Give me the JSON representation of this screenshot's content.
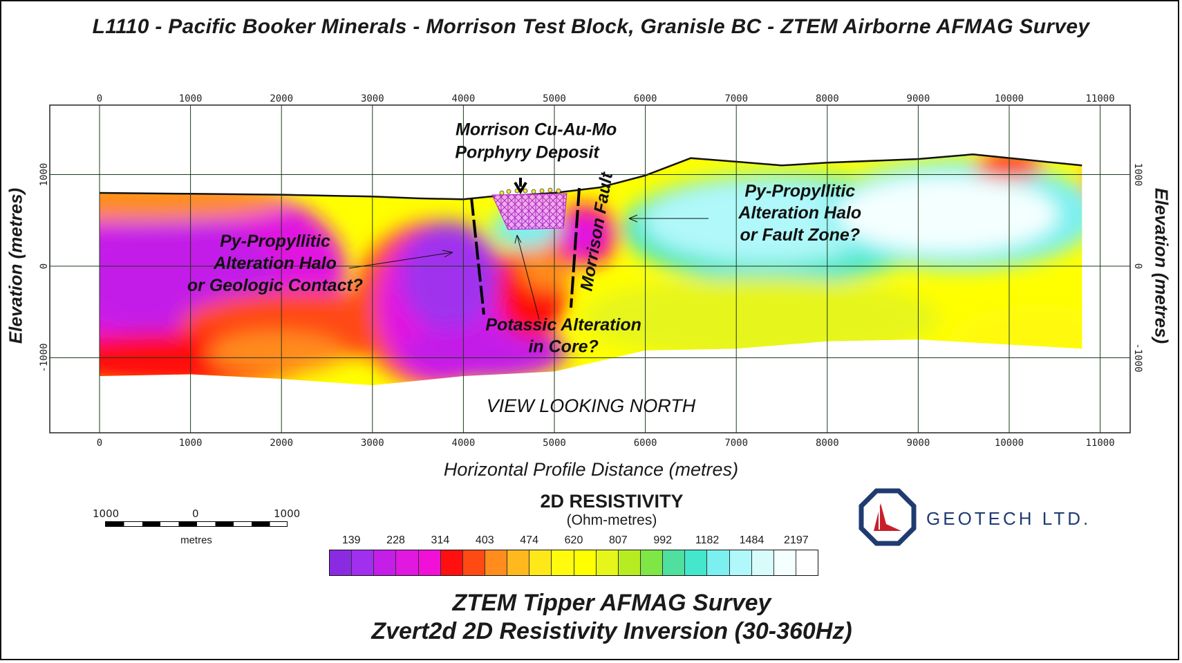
{
  "title": "L1110 - Pacific Booker Minerals - Morrison Test Block,  Granisle BC - ZTEM Airborne AFMAG Survey",
  "chart_data": {
    "type": "heatmap",
    "xlabel": "Horizontal Profile Distance (metres)",
    "ylabel": "Elevation (metres)",
    "xlim": [
      -550,
      11300
    ],
    "ylim": [
      -1800,
      1750
    ],
    "x_ticks": [
      "0",
      "1000",
      "2000",
      "3000",
      "4000",
      "5000",
      "6000",
      "7000",
      "8000",
      "9000",
      "10000",
      "11000"
    ],
    "x_tick_values": [
      0,
      1000,
      2000,
      3000,
      4000,
      5000,
      6000,
      7000,
      8000,
      9000,
      10000,
      11000
    ],
    "y_ticks": [
      "1000",
      "0",
      "-1000"
    ],
    "y_tick_values": [
      1000,
      0,
      -1000
    ],
    "grid": true,
    "view_note": "VIEW LOOKING NORTH",
    "topography": [
      [
        0,
        800
      ],
      [
        1000,
        790
      ],
      [
        2000,
        780
      ],
      [
        3000,
        760
      ],
      [
        3500,
        740
      ],
      [
        4000,
        730
      ],
      [
        4300,
        760
      ],
      [
        4700,
        780
      ],
      [
        5000,
        800
      ],
      [
        5500,
        860
      ],
      [
        6000,
        990
      ],
      [
        6500,
        1180
      ],
      [
        7000,
        1140
      ],
      [
        7500,
        1100
      ],
      [
        8000,
        1130
      ],
      [
        9000,
        1170
      ],
      [
        9600,
        1220
      ],
      [
        10200,
        1160
      ],
      [
        10800,
        1100
      ]
    ],
    "annotations": [
      {
        "text": "Morrison Cu-Au-Mo",
        "x": 4800,
        "y": 1430
      },
      {
        "text": "Porphyry Deposit",
        "x": 4700,
        "y": 1180
      },
      {
        "text": "Py-Propyllitic",
        "x": 1930,
        "y": 210
      },
      {
        "text": "Alteration Halo",
        "x": 1930,
        "y": -30
      },
      {
        "text": "or Geologic Contact?",
        "x": 1930,
        "y": -270
      },
      {
        "text": "Potassic Alteration",
        "x": 5100,
        "y": -700
      },
      {
        "text": "in Core?",
        "x": 5100,
        "y": -940
      },
      {
        "text": "Py-Propyllitic",
        "x": 7700,
        "y": 760
      },
      {
        "text": "Alteration Halo",
        "x": 7700,
        "y": 520
      },
      {
        "text": "or Fault Zone?",
        "x": 7700,
        "y": 280
      }
    ],
    "fault_label": "Morrison Fault",
    "colorbar": {
      "title": "2D RESISTIVITY",
      "unit": "(Ohm-metres)",
      "tick_labels": [
        "139",
        "228",
        "314",
        "403",
        "474",
        "620",
        "807",
        "992",
        "1182",
        "1484",
        "2197"
      ],
      "colors": [
        "#8a2be2",
        "#a030ee",
        "#c41ee8",
        "#e018e0",
        "#f010d8",
        "#ff1010",
        "#ff4a14",
        "#ff8c1c",
        "#ffb81e",
        "#ffe81a",
        "#fffa0e",
        "#ffff00",
        "#e6f51a",
        "#b8ec22",
        "#7ee645",
        "#4fe0a0",
        "#44e6cc",
        "#7cf0f0",
        "#b0f8fa",
        "#d8fcfc",
        "#f4ffff",
        "#ffffff"
      ]
    }
  },
  "scale_bar": {
    "left_label": "1000",
    "mid_label": "0",
    "right_label": "1000",
    "unit": "metres"
  },
  "footer": {
    "line1": "ZTEM Tipper AFMAG Survey",
    "line2": "Zvert2d 2D Resistivity Inversion (30-360Hz)"
  },
  "logo": {
    "brand": "GEOTECH LTD.",
    "colors": {
      "ring": "#1f3b70",
      "mark": "#c8202a"
    }
  }
}
